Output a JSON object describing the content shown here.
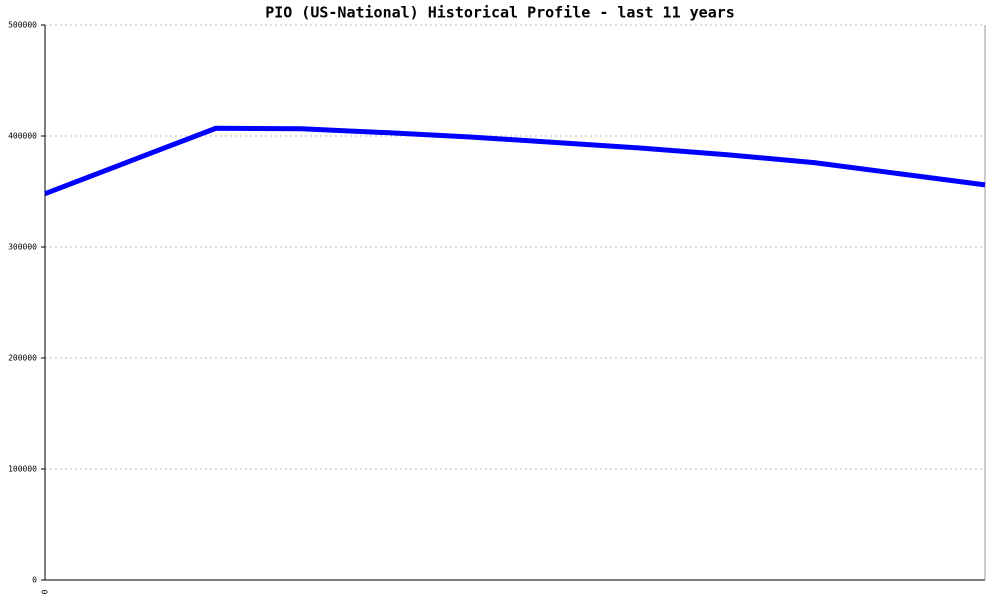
{
  "chart_data": {
    "type": "line",
    "title": "PIO (US-National) Historical Profile - last 11 years",
    "categories": [
      "0",
      null,
      null,
      null,
      null,
      null,
      null,
      null,
      null,
      null,
      null,
      null
    ],
    "series": [
      {
        "color": "#0000ff",
        "values": [
          348000,
          377500,
          407000,
          406500,
          403000,
          399000,
          394000,
          389000,
          383000,
          376000,
          366000,
          356000
        ]
      }
    ],
    "ylim": [
      0,
      500000
    ],
    "yticks": [
      0,
      100000,
      200000,
      300000,
      400000,
      500000
    ],
    "grid": true
  }
}
